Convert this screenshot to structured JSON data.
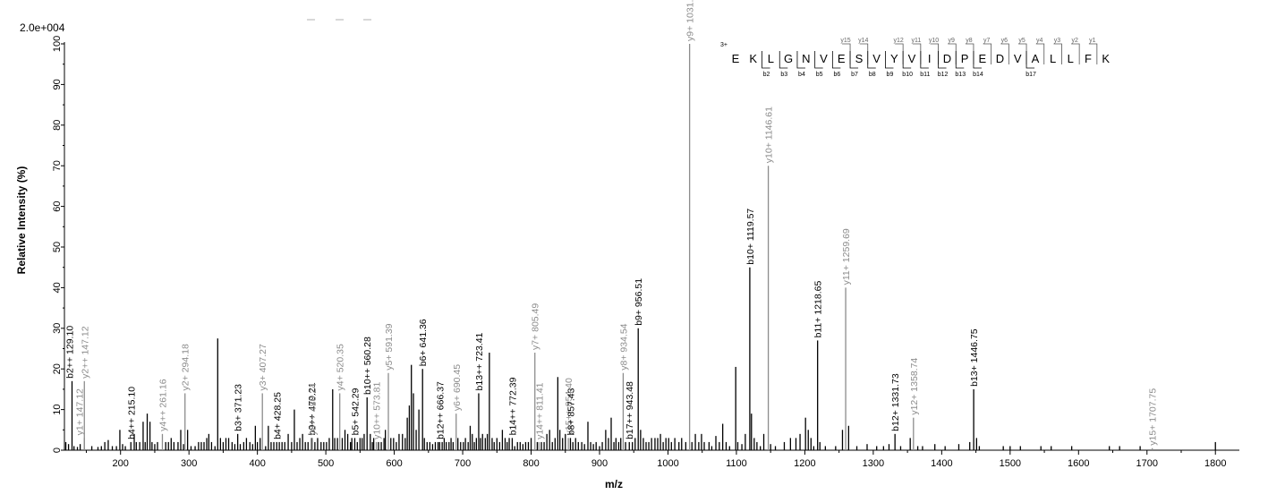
{
  "chart_data": {
    "type": "bar",
    "scale_label": "2.0e+004",
    "xlabel": "m/z",
    "ylabel": "Relative   Intensity (%)",
    "xlim": [
      118,
      1835
    ],
    "ylim": [
      0,
      100
    ],
    "x_ticks": [
      200,
      300,
      400,
      500,
      600,
      700,
      800,
      900,
      1000,
      1100,
      1200,
      1300,
      1400,
      1500,
      1600,
      1700,
      1800
    ],
    "y_ticks": [
      0,
      10,
      20,
      30,
      40,
      50,
      60,
      70,
      80,
      90,
      100
    ],
    "colors": {
      "b_ion": "#000000",
      "y_ion": "#8c8c8c",
      "unlabeled": "#000000"
    },
    "labeled_peaks": [
      {
        "mz": 129.1,
        "intensity": 17,
        "label": "b2++ 129.10",
        "ion": "b"
      },
      {
        "mz": 147.12,
        "intensity": 17,
        "label": "y2++ 147.12",
        "ion": "y"
      },
      {
        "mz": 147.12,
        "intensity": 3,
        "label": "y1+ 147.12",
        "ion": "y"
      },
      {
        "mz": 215.1,
        "intensity": 2,
        "label": "b4++ 215.10",
        "ion": "b"
      },
      {
        "mz": 261.16,
        "intensity": 4,
        "label": "y4++ 261.16",
        "ion": "y"
      },
      {
        "mz": 294.18,
        "intensity": 14,
        "label": "y2+ 294.18",
        "ion": "y"
      },
      {
        "mz": 371.23,
        "intensity": 4,
        "label": "b3+ 371.23",
        "ion": "b"
      },
      {
        "mz": 407.27,
        "intensity": 14,
        "label": "y3+ 407.27",
        "ion": "y"
      },
      {
        "mz": 428.25,
        "intensity": 2,
        "label": "b4+ 428.25",
        "ion": "b"
      },
      {
        "mz": 479.21,
        "intensity": 3,
        "label": "b9++ 479.21",
        "ion": "b"
      },
      {
        "mz": 480.24,
        "intensity": 3,
        "label": "y8++ 480.24",
        "ion": "y"
      },
      {
        "mz": 520.35,
        "intensity": 14,
        "label": "y4+ 520.35",
        "ion": "y"
      },
      {
        "mz": 542.29,
        "intensity": 3,
        "label": "b5+ 542.29",
        "ion": "b"
      },
      {
        "mz": 560.28,
        "intensity": 13,
        "label": "b10++ 560.28",
        "ion": "b"
      },
      {
        "mz": 573.81,
        "intensity": 2,
        "label": "y10++ 573.81",
        "ion": "y"
      },
      {
        "mz": 591.39,
        "intensity": 19,
        "label": "y5+ 591.39",
        "ion": "y"
      },
      {
        "mz": 641.36,
        "intensity": 20,
        "label": "b6+ 641.36",
        "ion": "b"
      },
      {
        "mz": 666.37,
        "intensity": 2,
        "label": "b12++ 666.37",
        "ion": "b"
      },
      {
        "mz": 690.45,
        "intensity": 9,
        "label": "y6+ 690.45",
        "ion": "y"
      },
      {
        "mz": 723.41,
        "intensity": 14,
        "label": "b13++ 723.41",
        "ion": "b"
      },
      {
        "mz": 772.39,
        "intensity": 3,
        "label": "b14++ 772.39",
        "ion": "b"
      },
      {
        "mz": 805.49,
        "intensity": 24,
        "label": "y7+ 805.49",
        "ion": "y"
      },
      {
        "mz": 811.41,
        "intensity": 2,
        "label": "y14++ 811.41",
        "ion": "y"
      },
      {
        "mz": 854.4,
        "intensity": 3,
        "label": "y15++ 854.40",
        "ion": "y"
      },
      {
        "mz": 857.43,
        "intensity": 3,
        "label": "b8+ 857.43",
        "ion": "b"
      },
      {
        "mz": 934.54,
        "intensity": 19,
        "label": "y8+ 934.54",
        "ion": "y"
      },
      {
        "mz": 943.48,
        "intensity": 2,
        "label": "b17++ 943.48",
        "ion": "b"
      },
      {
        "mz": 956.51,
        "intensity": 30,
        "label": "b9+ 956.51",
        "ion": "b"
      },
      {
        "mz": 1031.59,
        "intensity": 100,
        "label": "y9+ 1031.59",
        "ion": "y"
      },
      {
        "mz": 1119.57,
        "intensity": 45,
        "label": "b10+ 1119.57",
        "ion": "b"
      },
      {
        "mz": 1146.61,
        "intensity": 70,
        "label": "y10+ 1146.61",
        "ion": "y"
      },
      {
        "mz": 1218.65,
        "intensity": 27,
        "label": "b11+ 1218.65",
        "ion": "b"
      },
      {
        "mz": 1259.69,
        "intensity": 40,
        "label": "y11+ 1259.69",
        "ion": "y"
      },
      {
        "mz": 1331.73,
        "intensity": 4,
        "label": "b12+ 1331.73",
        "ion": "b"
      },
      {
        "mz": 1358.74,
        "intensity": 8,
        "label": "y12+ 1358.74",
        "ion": "y"
      },
      {
        "mz": 1446.75,
        "intensity": 15,
        "label": "b13+ 1446.75",
        "ion": "b"
      },
      {
        "mz": 1707.75,
        "intensity": 0.5,
        "label": "y15+ 1707.75",
        "ion": "y"
      }
    ],
    "unlabeled_peaks": [
      [
        120,
        2
      ],
      [
        124,
        1.5
      ],
      [
        132,
        1
      ],
      [
        137,
        0.8
      ],
      [
        141,
        1.5
      ],
      [
        158,
        1
      ],
      [
        167,
        0.8
      ],
      [
        172,
        1
      ],
      [
        177,
        2
      ],
      [
        182,
        2.5
      ],
      [
        188,
        1
      ],
      [
        194,
        1
      ],
      [
        199,
        5
      ],
      [
        203,
        1.5
      ],
      [
        207,
        1
      ],
      [
        220,
        4
      ],
      [
        223,
        2
      ],
      [
        228,
        2
      ],
      [
        233,
        7
      ],
      [
        236,
        2
      ],
      [
        239,
        9
      ],
      [
        243,
        7
      ],
      [
        246,
        2
      ],
      [
        250,
        1.5
      ],
      [
        254,
        2
      ],
      [
        266,
        2
      ],
      [
        270,
        2
      ],
      [
        274,
        3
      ],
      [
        278,
        2
      ],
      [
        284,
        2
      ],
      [
        288,
        5
      ],
      [
        292,
        1.5
      ],
      [
        298,
        5
      ],
      [
        303,
        1
      ],
      [
        309,
        1
      ],
      [
        314,
        2
      ],
      [
        318,
        2
      ],
      [
        322,
        2
      ],
      [
        326,
        3
      ],
      [
        329,
        4
      ],
      [
        333,
        2
      ],
      [
        338,
        1
      ],
      [
        342,
        27.5
      ],
      [
        346,
        3
      ],
      [
        350,
        2
      ],
      [
        354,
        3
      ],
      [
        358,
        3
      ],
      [
        363,
        2
      ],
      [
        367,
        1.5
      ],
      [
        375,
        1.5
      ],
      [
        380,
        2
      ],
      [
        384,
        3
      ],
      [
        389,
        2
      ],
      [
        393,
        1.5
      ],
      [
        397,
        6
      ],
      [
        400,
        2
      ],
      [
        404,
        3
      ],
      [
        412,
        1
      ],
      [
        416,
        6
      ],
      [
        420,
        2
      ],
      [
        424,
        2
      ],
      [
        432,
        2
      ],
      [
        436,
        2
      ],
      [
        440,
        2
      ],
      [
        445,
        4
      ],
      [
        450,
        2
      ],
      [
        454,
        10
      ],
      [
        458,
        2
      ],
      [
        462,
        3
      ],
      [
        466,
        4
      ],
      [
        470,
        2
      ],
      [
        474,
        2
      ],
      [
        484,
        2
      ],
      [
        488,
        3
      ],
      [
        493,
        2
      ],
      [
        497,
        2
      ],
      [
        501,
        2
      ],
      [
        505,
        3
      ],
      [
        510,
        15
      ],
      [
        513,
        3
      ],
      [
        517,
        3
      ],
      [
        524,
        3
      ],
      [
        528,
        5
      ],
      [
        532,
        4
      ],
      [
        536,
        2
      ],
      [
        538,
        3
      ],
      [
        546,
        2
      ],
      [
        550,
        3
      ],
      [
        553,
        3
      ],
      [
        556,
        4
      ],
      [
        565,
        4
      ],
      [
        568,
        2
      ],
      [
        570,
        3
      ],
      [
        577,
        2
      ],
      [
        581,
        2
      ],
      [
        585,
        3
      ],
      [
        587,
        5
      ],
      [
        595,
        3
      ],
      [
        599,
        3
      ],
      [
        603,
        2
      ],
      [
        607,
        4
      ],
      [
        612,
        4
      ],
      [
        616,
        3
      ],
      [
        619,
        8
      ],
      [
        622,
        11
      ],
      [
        625,
        21
      ],
      [
        628,
        14
      ],
      [
        632,
        5
      ],
      [
        636,
        10
      ],
      [
        644,
        3
      ],
      [
        648,
        2
      ],
      [
        652,
        2
      ],
      [
        656,
        1.5
      ],
      [
        660,
        2
      ],
      [
        664,
        2
      ],
      [
        670,
        2
      ],
      [
        673,
        3
      ],
      [
        676,
        2
      ],
      [
        680,
        2
      ],
      [
        683,
        3
      ],
      [
        686,
        2
      ],
      [
        693,
        3
      ],
      [
        697,
        2
      ],
      [
        701,
        2
      ],
      [
        704,
        3
      ],
      [
        708,
        2
      ],
      [
        711,
        6
      ],
      [
        714,
        4
      ],
      [
        717,
        2
      ],
      [
        720,
        3
      ],
      [
        726,
        3
      ],
      [
        729,
        4
      ],
      [
        733,
        3
      ],
      [
        736,
        4
      ],
      [
        739,
        24
      ],
      [
        743,
        3
      ],
      [
        746,
        2
      ],
      [
        750,
        3
      ],
      [
        754,
        2
      ],
      [
        758,
        5
      ],
      [
        762,
        3
      ],
      [
        765,
        2
      ],
      [
        768,
        3
      ],
      [
        776,
        1
      ],
      [
        780,
        2
      ],
      [
        784,
        2
      ],
      [
        788,
        1.5
      ],
      [
        792,
        2
      ],
      [
        796,
        2
      ],
      [
        800,
        3
      ],
      [
        809,
        2
      ],
      [
        815,
        2
      ],
      [
        819,
        2
      ],
      [
        823,
        4
      ],
      [
        827,
        5
      ],
      [
        831,
        2
      ],
      [
        835,
        3
      ],
      [
        839,
        18
      ],
      [
        842,
        5
      ],
      [
        846,
        3
      ],
      [
        850,
        4
      ],
      [
        861,
        2
      ],
      [
        865,
        3
      ],
      [
        869,
        2
      ],
      [
        874,
        2
      ],
      [
        878,
        1.5
      ],
      [
        883,
        7
      ],
      [
        887,
        2
      ],
      [
        891,
        1.5
      ],
      [
        895,
        2
      ],
      [
        900,
        1
      ],
      [
        904,
        2
      ],
      [
        909,
        5
      ],
      [
        913,
        3
      ],
      [
        917,
        8
      ],
      [
        921,
        2
      ],
      [
        924,
        3
      ],
      [
        928,
        2
      ],
      [
        931,
        3
      ],
      [
        938,
        2
      ],
      [
        948,
        2
      ],
      [
        952,
        3
      ],
      [
        960,
        5
      ],
      [
        964,
        3
      ],
      [
        968,
        2
      ],
      [
        972,
        2
      ],
      [
        976,
        3
      ],
      [
        981,
        3
      ],
      [
        985,
        3
      ],
      [
        989,
        4
      ],
      [
        993,
        2
      ],
      [
        997,
        3
      ],
      [
        1001,
        3
      ],
      [
        1005,
        2
      ],
      [
        1010,
        3
      ],
      [
        1016,
        2
      ],
      [
        1020,
        3
      ],
      [
        1026,
        2
      ],
      [
        1035,
        2
      ],
      [
        1040,
        4
      ],
      [
        1045,
        2
      ],
      [
        1049,
        4
      ],
      [
        1053,
        2
      ],
      [
        1060,
        2
      ],
      [
        1064,
        1
      ],
      [
        1070,
        3.5
      ],
      [
        1075,
        2
      ],
      [
        1080,
        6.5
      ],
      [
        1085,
        2
      ],
      [
        1090,
        1
      ],
      [
        1099,
        20.5
      ],
      [
        1102,
        2
      ],
      [
        1108,
        1.5
      ],
      [
        1113,
        4
      ],
      [
        1122,
        9
      ],
      [
        1126,
        3
      ],
      [
        1130,
        2
      ],
      [
        1135,
        1
      ],
      [
        1140,
        4
      ],
      [
        1150,
        1.5
      ],
      [
        1157,
        1
      ],
      [
        1170,
        2
      ],
      [
        1179,
        3
      ],
      [
        1187,
        3
      ],
      [
        1193,
        4
      ],
      [
        1201,
        8
      ],
      [
        1205,
        5
      ],
      [
        1209,
        3
      ],
      [
        1213,
        1
      ],
      [
        1222,
        2
      ],
      [
        1230,
        1
      ],
      [
        1245,
        1
      ],
      [
        1255,
        5
      ],
      [
        1264,
        6
      ],
      [
        1276,
        1
      ],
      [
        1291,
        1.5
      ],
      [
        1305,
        1
      ],
      [
        1315,
        1
      ],
      [
        1323,
        1.5
      ],
      [
        1340,
        1
      ],
      [
        1354,
        3
      ],
      [
        1365,
        1
      ],
      [
        1372,
        1
      ],
      [
        1390,
        1.5
      ],
      [
        1405,
        1
      ],
      [
        1425,
        1.5
      ],
      [
        1441,
        2
      ],
      [
        1451,
        3
      ],
      [
        1455,
        1
      ],
      [
        1490,
        1
      ],
      [
        1500,
        1
      ],
      [
        1515,
        1
      ],
      [
        1545,
        1
      ],
      [
        1560,
        1
      ],
      [
        1590,
        1
      ],
      [
        1645,
        1
      ],
      [
        1660,
        1
      ],
      [
        1690,
        1
      ],
      [
        1800,
        2
      ]
    ],
    "sequence": {
      "charge": "3+",
      "residues": [
        "E",
        "K",
        "L",
        "G",
        "N",
        "V",
        "E",
        "S",
        "V",
        "Y",
        "V",
        "I",
        "D",
        "P",
        "E",
        "D",
        "V",
        "A",
        "L",
        "L",
        "F",
        "K"
      ],
      "y_ions": [
        {
          "after": 7,
          "label": "y15"
        },
        {
          "after": 8,
          "label": "y14"
        },
        {
          "after": 10,
          "label": "y12"
        },
        {
          "after": 11,
          "label": "y11"
        },
        {
          "after": 12,
          "label": "y10"
        },
        {
          "after": 13,
          "label": "y9"
        },
        {
          "after": 14,
          "label": "y8"
        },
        {
          "after": 15,
          "label": "y7"
        },
        {
          "after": 16,
          "label": "y6"
        },
        {
          "after": 17,
          "label": "y5"
        },
        {
          "after": 18,
          "label": "y4"
        },
        {
          "after": 19,
          "label": "y3"
        },
        {
          "after": 20,
          "label": "y2"
        },
        {
          "after": 21,
          "label": "y1"
        }
      ],
      "b_ions": [
        {
          "after": 2,
          "label": "b2"
        },
        {
          "after": 3,
          "label": "b3"
        },
        {
          "after": 4,
          "label": "b4"
        },
        {
          "after": 5,
          "label": "b5"
        },
        {
          "after": 6,
          "label": "b6"
        },
        {
          "after": 7,
          "label": "b7"
        },
        {
          "after": 8,
          "label": "b8"
        },
        {
          "after": 9,
          "label": "b9"
        },
        {
          "after": 10,
          "label": "b10"
        },
        {
          "after": 11,
          "label": "b11"
        },
        {
          "after": 12,
          "label": "b12"
        },
        {
          "after": 13,
          "label": "b13"
        },
        {
          "after": 14,
          "label": "b14"
        },
        {
          "after": 17,
          "label": "b17"
        }
      ]
    }
  }
}
